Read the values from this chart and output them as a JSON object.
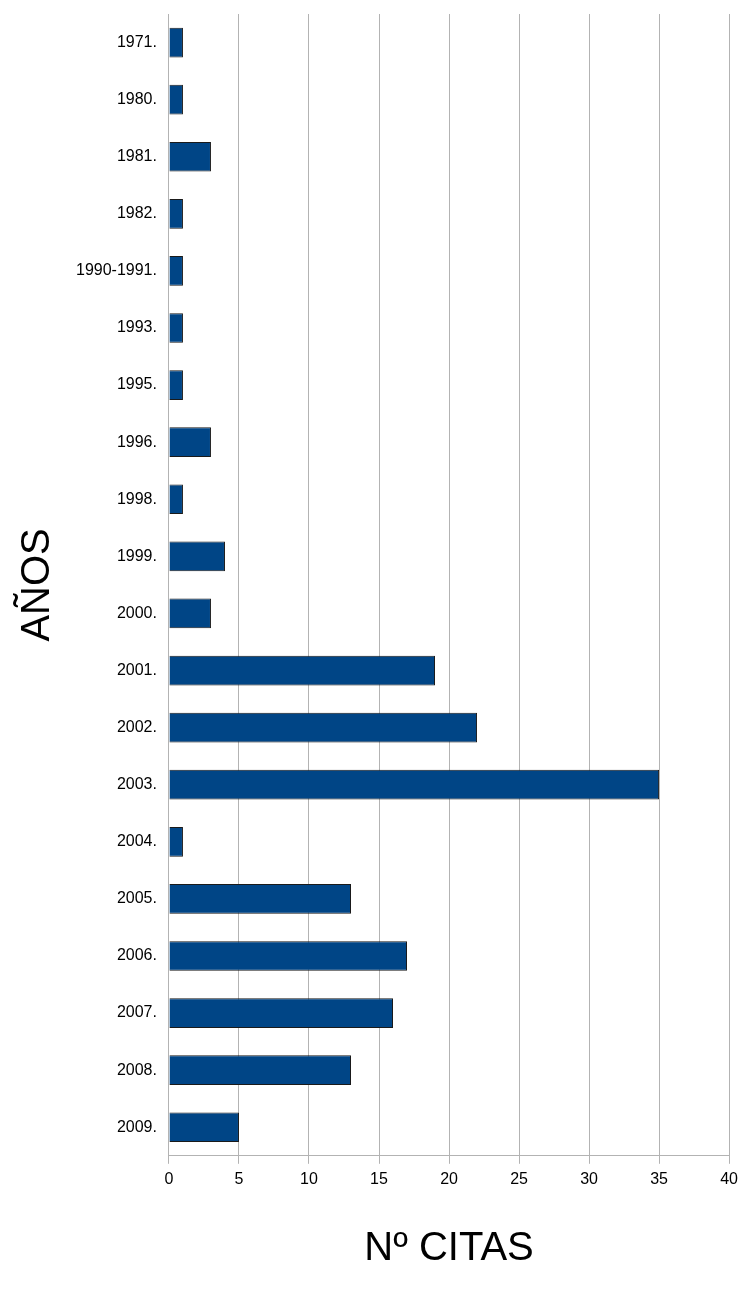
{
  "chart_data": {
    "type": "bar",
    "orientation": "horizontal",
    "xlabel": "Nº CITAS",
    "ylabel": "AÑOS",
    "categories": [
      "1971.",
      "1980.",
      "1981.",
      "1982.",
      "1990-1991.",
      "1993.",
      "1995.",
      "1996.",
      "1998.",
      "1999.",
      "2000.",
      "2001.",
      "2002.",
      "2003.",
      "2004.",
      "2005.",
      "2006.",
      "2007.",
      "2008.",
      "2009."
    ],
    "values": [
      1,
      1,
      3,
      1,
      1,
      1,
      1,
      3,
      1,
      4,
      3,
      19,
      22,
      35,
      1,
      13,
      17,
      16,
      13,
      5
    ],
    "color": "#004586",
    "xlim": [
      0,
      40
    ],
    "xticks": [
      0,
      5,
      10,
      15,
      20,
      25,
      30,
      35,
      40
    ],
    "grid": "x",
    "legend": false
  }
}
